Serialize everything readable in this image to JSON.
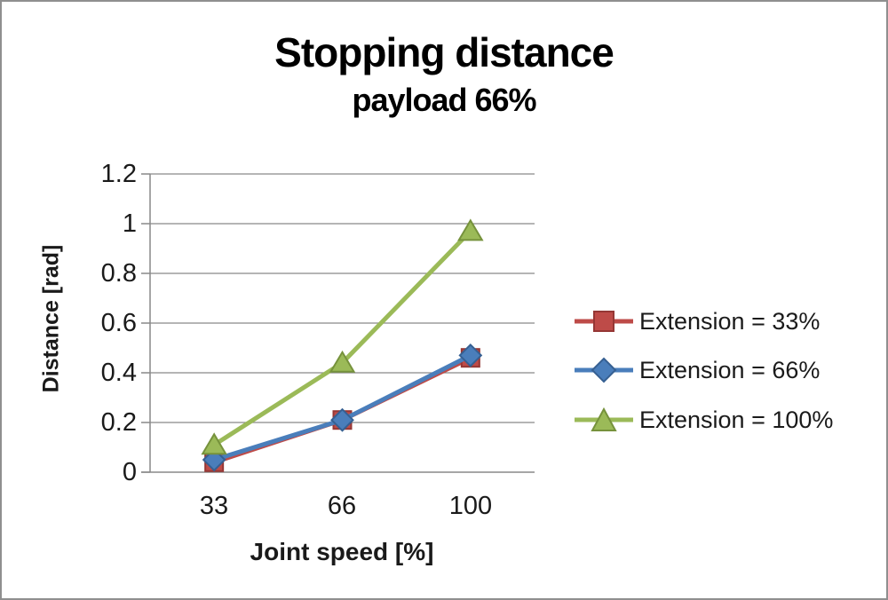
{
  "chart_data": {
    "type": "line",
    "title": "Stopping distance",
    "subtitle": "payload 66%",
    "xlabel": "Joint speed [%]",
    "ylabel": "Distance [rad]",
    "categories": [
      "33",
      "66",
      "100"
    ],
    "series": [
      {
        "name": "Extension = 33%",
        "marker": "square",
        "color": "#BE4B48",
        "border": "#953735",
        "values": [
          0.04,
          0.21,
          0.46
        ]
      },
      {
        "name": "Extension = 66%",
        "marker": "diamond",
        "color": "#4A7EBB",
        "border": "#366092",
        "values": [
          0.05,
          0.21,
          0.47
        ]
      },
      {
        "name": "Extension = 100%",
        "marker": "triangle",
        "color": "#9BBA58",
        "border": "#76923C",
        "values": [
          0.11,
          0.44,
          0.97
        ]
      }
    ],
    "ylim": [
      0,
      1.2
    ],
    "ytick_step": 0.2,
    "yticks": [
      "0",
      "0.2",
      "0.4",
      "0.6",
      "0.8",
      "1",
      "1.2"
    ],
    "grid": true,
    "legend_position": "right",
    "gridline_color": "#898989",
    "axis_color": "#898989",
    "text_color": "#1a1a1a"
  }
}
